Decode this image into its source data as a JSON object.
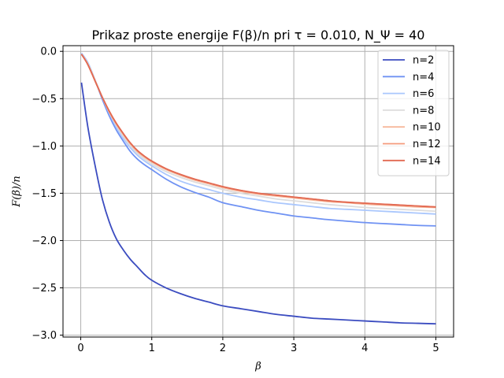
{
  "chart_data": {
    "type": "line",
    "title": "Prikaz proste energije F(β)/n pri τ = 0.010, N_Ψ = 40",
    "xlabel": "β",
    "ylabel": "F(β)/n",
    "xlim": [
      -0.25,
      5.25
    ],
    "ylim": [
      -3.02,
      0.06
    ],
    "xticks": [
      0,
      1,
      2,
      3,
      4,
      5
    ],
    "xtick_labels": [
      "0",
      "1",
      "2",
      "3",
      "4",
      "5"
    ],
    "yticks": [
      0.0,
      -0.5,
      -1.0,
      -1.5,
      -2.0,
      -2.5,
      -3.0
    ],
    "ytick_labels": [
      "0.0",
      "−0.5",
      "−1.0",
      "−1.5",
      "−2.0",
      "−2.5",
      "−3.0"
    ],
    "grid": true,
    "legend_position": "top-right",
    "x": [
      0.01,
      0.1,
      0.2,
      0.3,
      0.4,
      0.5,
      0.6,
      0.7,
      0.8,
      0.9,
      1.0,
      1.2,
      1.4,
      1.6,
      1.8,
      2.0,
      2.25,
      2.5,
      2.75,
      3.0,
      3.25,
      3.5,
      3.75,
      4.0,
      4.25,
      4.5,
      4.75,
      5.0
    ],
    "series": [
      {
        "name": "n=2",
        "color": "#3b4cc0",
        "values": [
          -0.33,
          -0.8,
          -1.2,
          -1.55,
          -1.8,
          -1.98,
          -2.1,
          -2.2,
          -2.28,
          -2.36,
          -2.42,
          -2.5,
          -2.56,
          -2.61,
          -2.65,
          -2.69,
          -2.72,
          -2.75,
          -2.78,
          -2.8,
          -2.82,
          -2.83,
          -2.84,
          -2.85,
          -2.86,
          -2.87,
          -2.875,
          -2.88
        ]
      },
      {
        "name": "n=4",
        "color": "#6f92f3",
        "values": [
          -0.02,
          -0.12,
          -0.3,
          -0.5,
          -0.68,
          -0.83,
          -0.95,
          -1.06,
          -1.14,
          -1.2,
          -1.25,
          -1.35,
          -1.43,
          -1.49,
          -1.54,
          -1.6,
          -1.64,
          -1.68,
          -1.71,
          -1.74,
          -1.76,
          -1.78,
          -1.795,
          -1.81,
          -1.82,
          -1.83,
          -1.84,
          -1.845
        ]
      },
      {
        "name": "n=6",
        "color": "#aac7fd",
        "values": [
          -0.02,
          -0.12,
          -0.3,
          -0.48,
          -0.65,
          -0.8,
          -0.92,
          -1.02,
          -1.1,
          -1.16,
          -1.21,
          -1.3,
          -1.37,
          -1.42,
          -1.46,
          -1.5,
          -1.54,
          -1.57,
          -1.6,
          -1.62,
          -1.64,
          -1.66,
          -1.67,
          -1.68,
          -1.69,
          -1.7,
          -1.71,
          -1.72
        ]
      },
      {
        "name": "n=8",
        "color": "#dddcdc",
        "values": [
          -0.03,
          -0.13,
          -0.3,
          -0.48,
          -0.64,
          -0.78,
          -0.9,
          -1.0,
          -1.08,
          -1.14,
          -1.19,
          -1.27,
          -1.33,
          -1.38,
          -1.42,
          -1.46,
          -1.5,
          -1.53,
          -1.56,
          -1.58,
          -1.6,
          -1.62,
          -1.635,
          -1.65,
          -1.66,
          -1.67,
          -1.68,
          -1.69
        ]
      },
      {
        "name": "n=10",
        "color": "#f7b89c",
        "values": [
          -0.03,
          -0.14,
          -0.31,
          -0.48,
          -0.64,
          -0.77,
          -0.88,
          -0.98,
          -1.06,
          -1.12,
          -1.17,
          -1.25,
          -1.31,
          -1.36,
          -1.4,
          -1.44,
          -1.48,
          -1.51,
          -1.53,
          -1.55,
          -1.57,
          -1.59,
          -1.6,
          -1.615,
          -1.625,
          -1.635,
          -1.645,
          -1.65
        ]
      },
      {
        "name": "n=12",
        "color": "#f49a7b",
        "values": [
          -0.03,
          -0.14,
          -0.31,
          -0.48,
          -0.63,
          -0.76,
          -0.87,
          -0.97,
          -1.05,
          -1.11,
          -1.16,
          -1.24,
          -1.3,
          -1.35,
          -1.39,
          -1.43,
          -1.47,
          -1.5,
          -1.52,
          -1.54,
          -1.56,
          -1.58,
          -1.595,
          -1.605,
          -1.615,
          -1.625,
          -1.635,
          -1.645
        ]
      },
      {
        "name": "n=14",
        "color": "#e26952",
        "values": [
          -0.03,
          -0.14,
          -0.31,
          -0.48,
          -0.63,
          -0.76,
          -0.87,
          -0.97,
          -1.05,
          -1.11,
          -1.16,
          -1.24,
          -1.3,
          -1.35,
          -1.39,
          -1.43,
          -1.47,
          -1.5,
          -1.52,
          -1.54,
          -1.56,
          -1.58,
          -1.595,
          -1.605,
          -1.615,
          -1.625,
          -1.635,
          -1.645
        ]
      }
    ]
  }
}
